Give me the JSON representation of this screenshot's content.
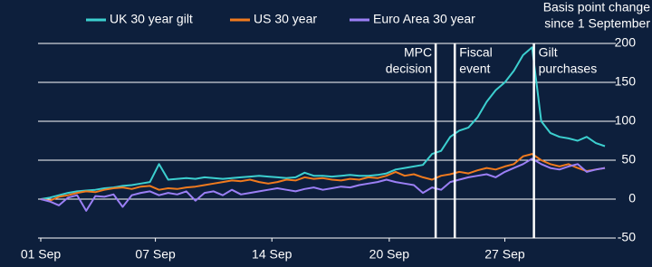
{
  "chart_data": {
    "type": "line",
    "y_label": [
      "Basis point change",
      "since 1 September"
    ],
    "x": [
      0,
      1,
      2,
      3,
      4,
      5,
      6,
      7,
      8,
      9,
      10,
      11,
      12,
      13,
      14,
      15,
      16,
      17,
      18,
      19,
      20,
      21,
      22,
      23,
      24,
      25,
      26,
      27,
      28,
      29,
      30,
      31,
      32,
      33,
      34,
      35,
      36,
      37,
      38,
      39,
      40,
      41,
      42,
      43,
      44,
      45,
      46,
      47,
      48,
      49,
      50,
      51,
      52,
      53,
      54,
      55,
      56,
      57,
      58,
      59,
      60,
      61,
      62
    ],
    "xlim": [
      0,
      62
    ],
    "xticks": [
      {
        "value": 0,
        "label": "01 Sep"
      },
      {
        "value": 12.6,
        "label": "07 Sep"
      },
      {
        "value": 25.4,
        "label": "14 Sep"
      },
      {
        "value": 38.3,
        "label": "20 Sep"
      },
      {
        "value": 51,
        "label": "27 Sep"
      }
    ],
    "ylim": [
      -50,
      200
    ],
    "yticks": [
      -50,
      0,
      50,
      100,
      150,
      200
    ],
    "grid": true,
    "legend": "top",
    "series": [
      {
        "name": "UK 30 year gilt",
        "color": "#3ccfcf",
        "values": [
          0,
          2,
          5,
          8,
          10,
          11,
          12,
          14,
          15,
          17,
          18,
          20,
          22,
          45,
          25,
          26,
          27,
          26,
          28,
          27,
          26,
          27,
          28,
          29,
          30,
          29,
          28,
          27,
          28,
          34,
          30,
          30,
          29,
          30,
          31,
          30,
          30,
          31,
          33,
          38,
          40,
          42,
          44,
          58,
          62,
          80,
          88,
          92,
          105,
          125,
          140,
          150,
          165,
          185,
          195,
          100,
          85,
          80,
          78,
          75,
          80,
          72,
          68
        ]
      },
      {
        "name": "US 30 year",
        "color": "#f07a1e",
        "values": [
          0,
          -2,
          3,
          5,
          8,
          10,
          9,
          12,
          14,
          15,
          13,
          16,
          17,
          12,
          14,
          13,
          15,
          16,
          18,
          20,
          22,
          24,
          23,
          25,
          22,
          20,
          22,
          25,
          24,
          28,
          26,
          27,
          25,
          24,
          26,
          25,
          28,
          27,
          30,
          35,
          30,
          32,
          28,
          25,
          30,
          32,
          35,
          33,
          37,
          40,
          38,
          42,
          45,
          55,
          58,
          50,
          45,
          42,
          45,
          40,
          36,
          38,
          40
        ]
      },
      {
        "name": "Euro Area 30 year",
        "color": "#9b7ff5",
        "values": [
          0,
          -3,
          -8,
          2,
          5,
          -15,
          4,
          3,
          6,
          -10,
          5,
          8,
          10,
          5,
          8,
          6,
          10,
          -2,
          8,
          10,
          5,
          12,
          6,
          8,
          10,
          12,
          14,
          12,
          10,
          13,
          15,
          12,
          14,
          16,
          15,
          18,
          20,
          22,
          25,
          22,
          20,
          18,
          8,
          15,
          12,
          22,
          25,
          28,
          30,
          32,
          28,
          35,
          40,
          45,
          52,
          45,
          40,
          38,
          42,
          45,
          35,
          38,
          40
        ]
      }
    ],
    "annotations": [
      {
        "x": 43.4,
        "label": [
          "MPC",
          "decision"
        ]
      },
      {
        "x": 45.5,
        "label": [
          "Fiscal",
          "event"
        ]
      },
      {
        "x": 54.2,
        "label": [
          "Gilt",
          "purchases"
        ]
      }
    ]
  }
}
